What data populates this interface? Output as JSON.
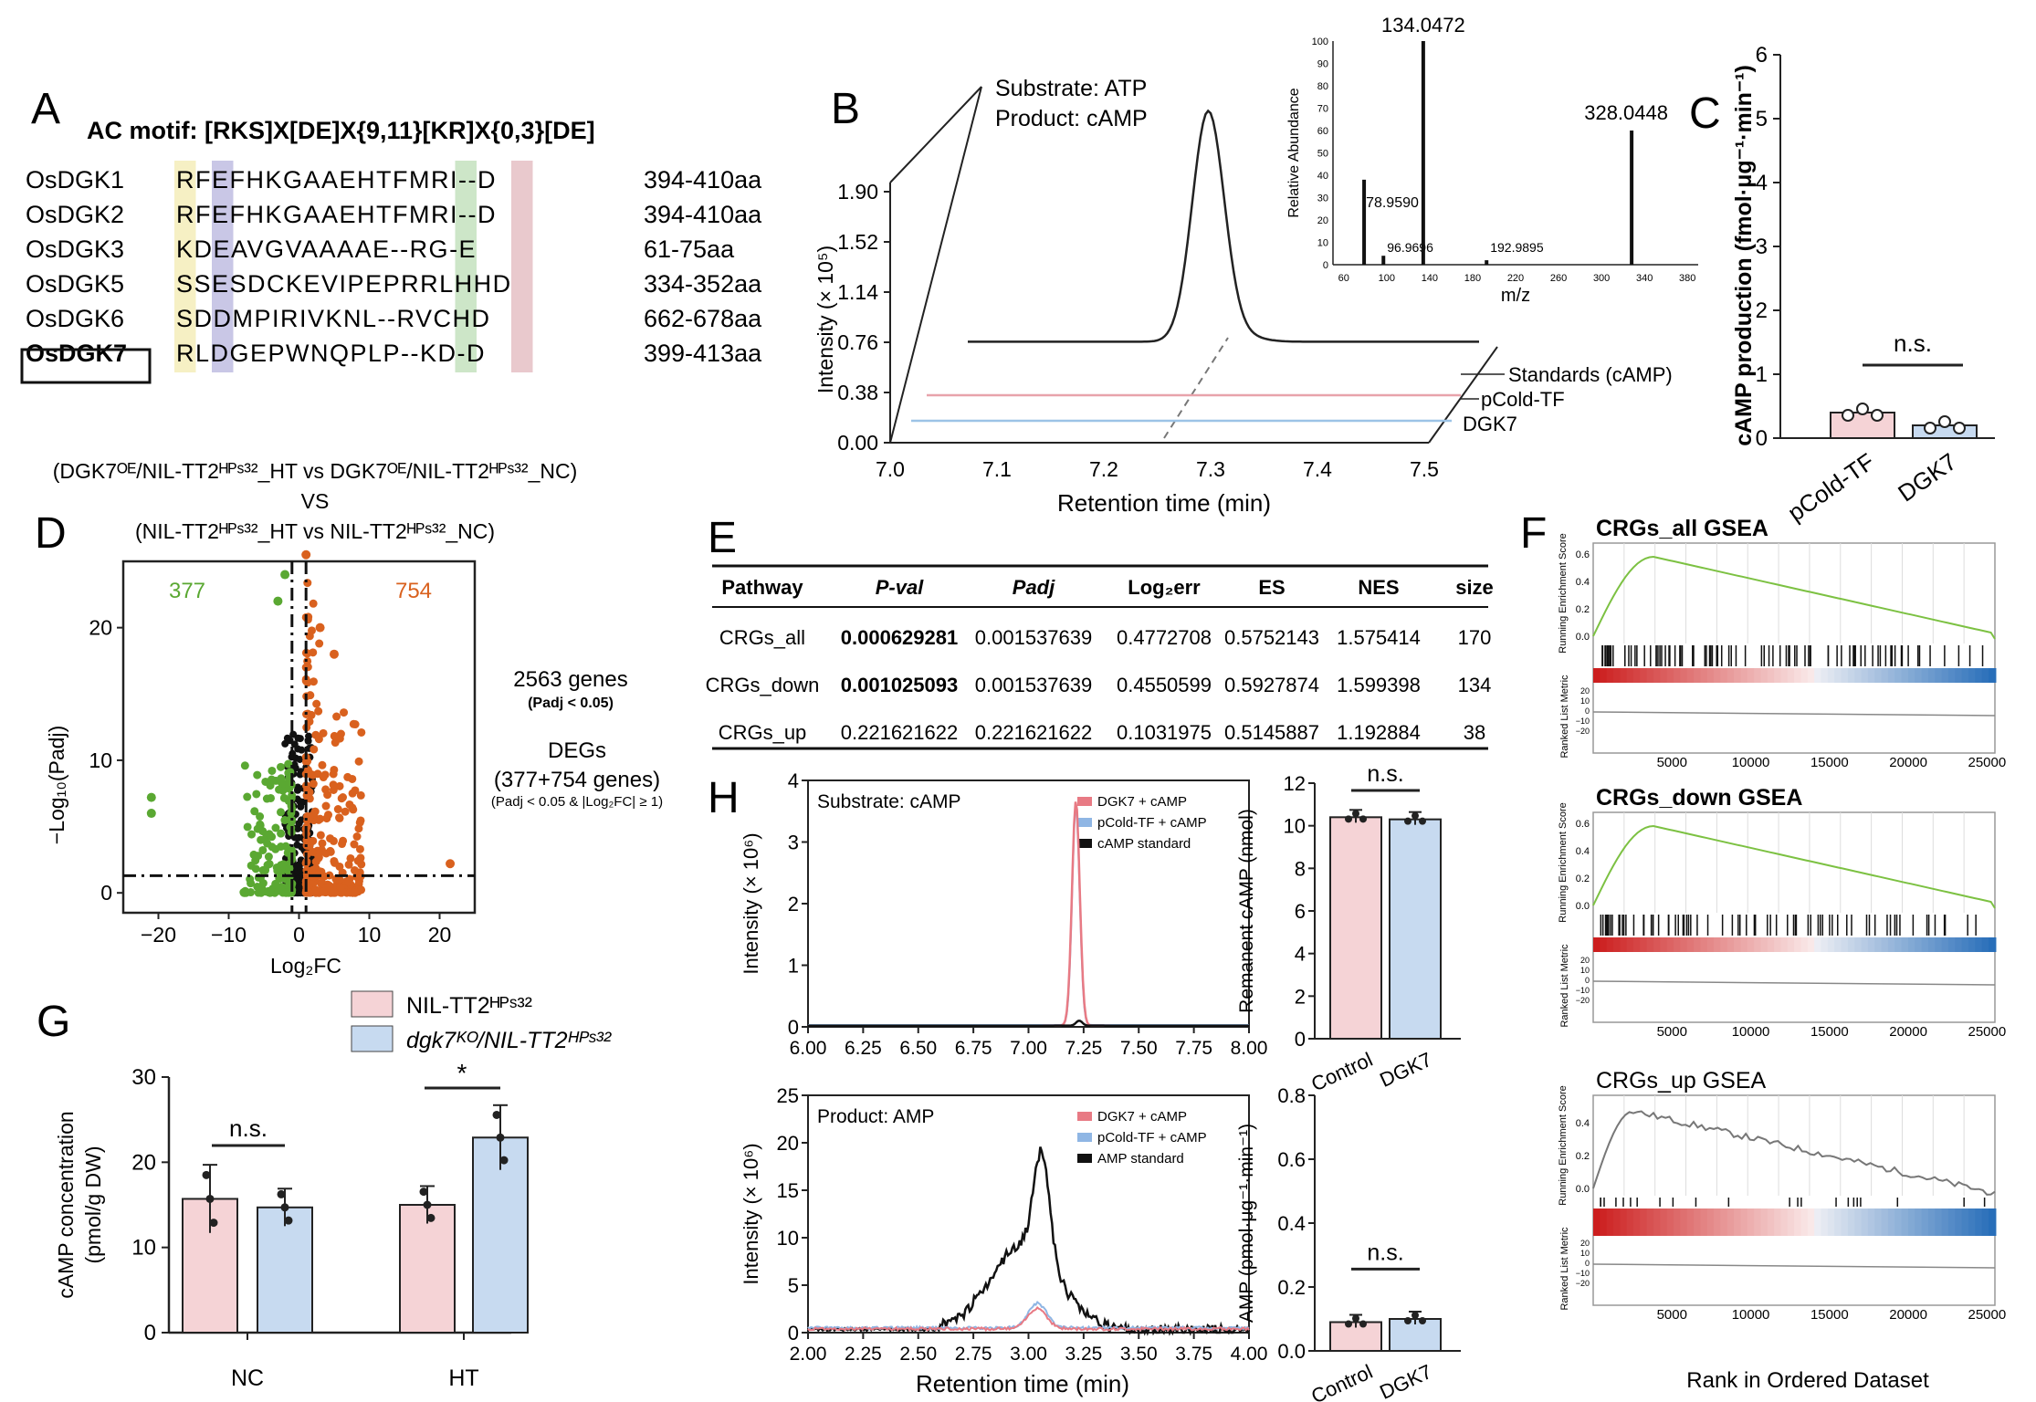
{
  "panel_labels": [
    "A",
    "B",
    "C",
    "D",
    "E",
    "F",
    "G",
    "H"
  ],
  "panelA": {
    "title": "AC motif: [RKS]X[DE]X{9,11}[KR]X{0,3}[DE]",
    "rows": [
      {
        "name": "OsDGK1",
        "seq": "RFEFHKGAAEHTFMRI--D",
        "range": "394-410aa"
      },
      {
        "name": "OsDGK2",
        "seq": "RFEFHKGAAEHTFMRI--D",
        "range": "394-410aa"
      },
      {
        "name": "OsDGK3",
        "seq": "KDEAVGVAAAAE--RG-E",
        "range": "61-75aa"
      },
      {
        "name": "OsDGK5",
        "seq": "SSESDCKEVIPEPRRLHHD",
        "range": "334-352aa"
      },
      {
        "name": "OsDGK6",
        "seq": "SDDMPIRIVKNL--RVCHD",
        "range": "662-678aa"
      },
      {
        "name": "OsDGK7",
        "seq": "RLDGEPWNQPLP--KD-D",
        "range": "399-413aa"
      }
    ],
    "colors": {
      "col1": "#f6f0c4",
      "col3": "#c9c7e6",
      "krcol": "#cde6c8",
      "endcol": "#e9c9cd"
    }
  },
  "panelB": {
    "substrate": "Substrate: ATP",
    "product": "Product: cAMP",
    "ylabel": "Intensity (× 10⁵)",
    "xlabel": "Retention time (min)",
    "yticks": [
      "0.00",
      "0.38",
      "0.76",
      "1.14",
      "1.52",
      "1.90"
    ],
    "xticks": [
      "7.0",
      "7.1",
      "7.2",
      "7.3",
      "7.4",
      "7.5"
    ],
    "traces": [
      "Standards (cAMP)",
      "pCold-TF",
      "DGK7"
    ],
    "trace_colors": [
      "#222222",
      "#e8a3ab",
      "#9cc3e6"
    ],
    "inset": {
      "ylabel": "Relative Abundance",
      "xlabel": "m/z",
      "yticks": [
        "0",
        "10",
        "20",
        "30",
        "40",
        "50",
        "60",
        "70",
        "80",
        "90",
        "100"
      ],
      "xticks": [
        "60",
        "100",
        "140",
        "180",
        "220",
        "260",
        "300",
        "340",
        "380"
      ],
      "peaks": [
        {
          "mz": 78.959,
          "abundance": 38,
          "label": "78.9590"
        },
        {
          "mz": 96.9696,
          "abundance": 4,
          "label": "96.9696"
        },
        {
          "mz": 134.0472,
          "abundance": 100,
          "label": "134.0472"
        },
        {
          "mz": 192.9895,
          "abundance": 2,
          "label": "192.9895"
        },
        {
          "mz": 328.0448,
          "abundance": 60,
          "label": "328.0448"
        }
      ]
    }
  },
  "panelC": {
    "ylabel": "cAMP production (fmol·μg⁻¹·min⁻¹)",
    "yticks": [
      "0",
      "1",
      "2",
      "3",
      "4",
      "5",
      "6"
    ],
    "categories": [
      "pCold-TF",
      "DGK7"
    ],
    "values": [
      0.4,
      0.2
    ],
    "colors": [
      "#f5d3d6",
      "#c7daf0"
    ],
    "sig": "n.s."
  },
  "panelD": {
    "title_line1": "(DGK7ᴼᴱ/NIL-TT2ᴴᴾˢ³²_HT vs DGK7ᴼᴱ/NIL-TT2ᴴᴾˢ³²_NC)",
    "title_vs": "VS",
    "title_line2": "(NIL-TT2ᴴᴾˢ³²_HT vs NIL-TT2ᴴᴾˢ³²_NC)",
    "ylabel": "−Log₁₀(Padj)",
    "xlabel": "Log₂FC",
    "xticks": [
      "−20",
      "−10",
      "0",
      "10",
      "20"
    ],
    "yticks": [
      "0",
      "10",
      "20"
    ],
    "down_count": "377",
    "up_count": "754",
    "genes_text": "2563 genes",
    "genes_sub": "(Padj < 0.05)",
    "degs_text": "DEGs",
    "degs_count": "(377+754 genes)",
    "degs_sub": "(Padj < 0.05 & |Log₂FC| ≥ 1)",
    "colors": {
      "down": "#5aa832",
      "up": "#d9611e",
      "ns": "#111111"
    }
  },
  "panelE": {
    "headers": [
      "Pathway",
      "P-val",
      "Padj",
      "Log₂err",
      "ES",
      "NES",
      "size"
    ],
    "rows": [
      [
        "CRGs_all",
        "0.000629281",
        "0.001537639",
        "0.4772708",
        "0.5752143",
        "1.575414",
        "170"
      ],
      [
        "CRGs_down",
        "0.001025093",
        "0.001537639",
        "0.4550599",
        "0.5927874",
        "1.599398",
        "134"
      ],
      [
        "CRGs_up",
        "0.221621622",
        "0.221621622",
        "0.1031975",
        "0.5145887",
        "1.192884",
        "38"
      ]
    ]
  },
  "panelF": {
    "plots": [
      {
        "title": "CRGs_all GSEA",
        "curve_color": "#7cc142"
      },
      {
        "title": "CRGs_down GSEA",
        "curve_color": "#7cc142"
      },
      {
        "title": "CRGs_up GSEA",
        "curve_color": "#777777"
      }
    ],
    "es_label": "Running Enrichment Score",
    "metric_label": "Ranked List Metric",
    "xlabel": "Rank in Ordered Dataset",
    "xticks": [
      "5000",
      "10000",
      "15000",
      "20000",
      "25000"
    ],
    "es_ticks": [
      "0.6",
      "0.4",
      "0.2",
      "0.0"
    ],
    "metric_ticks": [
      "20",
      "10",
      "0",
      "−10",
      "−20"
    ]
  },
  "panelG": {
    "legend": [
      "NIL-TT2ᴴᴾˢ³²",
      "dgk7ᴷᴼ/NIL-TT2ᴴᴾˢ³²"
    ],
    "ylabel_line1": "cAMP concentration",
    "ylabel_line2": "(pmol/g DW)",
    "yticks": [
      "0",
      "10",
      "20",
      "30"
    ],
    "groups": [
      "NC",
      "HT"
    ],
    "series": [
      {
        "name": "NIL-TT2ᴴᴾˢ³²",
        "values": [
          15.7,
          15.0
        ],
        "color": "#f5d3d6"
      },
      {
        "name": "dgk7ᴷᴼ/NIL-TT2ᴴᴾˢ³²",
        "values": [
          14.7,
          22.9
        ],
        "color": "#c7daf0"
      }
    ],
    "sig": [
      "n.s.",
      "*"
    ]
  },
  "panelH": {
    "top": {
      "title": "Substrate: cAMP",
      "ylabel": "Intensity (× 10⁶)",
      "xticks": [
        "6.00",
        "6.25",
        "6.50",
        "6.75",
        "7.00",
        "7.25",
        "7.50",
        "7.75",
        "8.00"
      ],
      "yticks": [
        "0",
        "1",
        "2",
        "3",
        "4"
      ],
      "legend": [
        "DGK7 + cAMP",
        "pCold-TF + cAMP",
        "cAMP standard"
      ]
    },
    "bottom": {
      "title": "Product: AMP",
      "ylabel": "Intensity (× 10⁶)",
      "xlabel": "Retention time (min)",
      "xticks": [
        "2.00",
        "2.25",
        "2.50",
        "2.75",
        "3.00",
        "3.25",
        "3.50",
        "3.75",
        "4.00"
      ],
      "yticks": [
        "0",
        "5",
        "10",
        "15",
        "20",
        "25"
      ],
      "legend": [
        "DGK7 + cAMP",
        "pCold-TF + cAMP",
        "AMP standard"
      ]
    },
    "bar_top": {
      "ylabel": "Remanent cAMP (nmol)",
      "yticks": [
        "0",
        "2",
        "4",
        "6",
        "8",
        "10",
        "12"
      ],
      "categories": [
        "Control",
        "DGK7"
      ],
      "values": [
        10.4,
        10.3
      ],
      "sig": "n.s."
    },
    "bar_bottom": {
      "ylabel": "AMP (pmol·μg⁻¹·min⁻¹)",
      "yticks": [
        "0.0",
        "0.2",
        "0.4",
        "0.6",
        "0.8"
      ],
      "categories": [
        "Control",
        "DGK7"
      ],
      "values": [
        0.09,
        0.1
      ],
      "sig": "n.s."
    },
    "legend_colors": [
      "#e87a84",
      "#8fb6e4",
      "#111111"
    ]
  }
}
